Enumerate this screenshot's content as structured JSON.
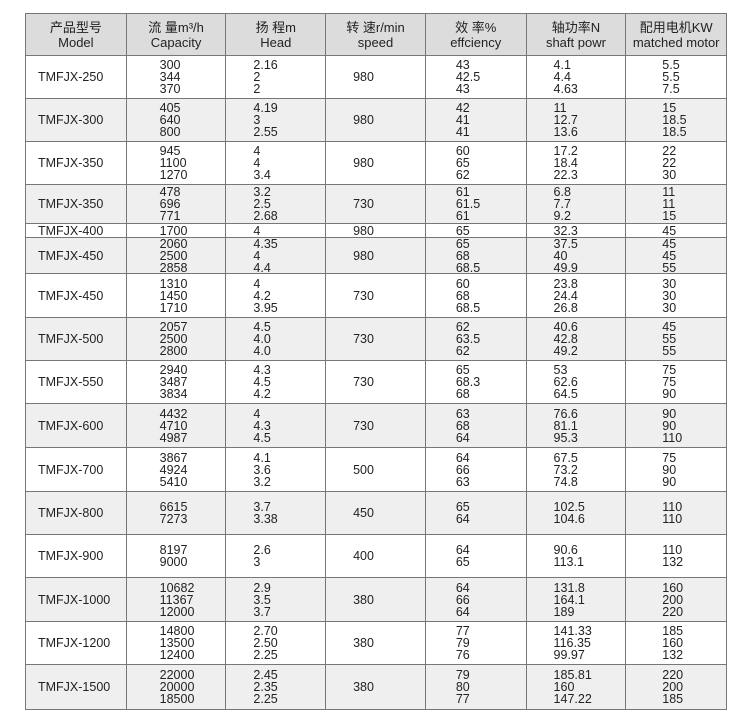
{
  "headers": [
    {
      "cn": "产品型号",
      "en": "Model"
    },
    {
      "cn": "流 量m³/h",
      "en": "Capacity"
    },
    {
      "cn": "扬 程m",
      "en": "Head"
    },
    {
      "cn": "转 速r/min",
      "en": "speed"
    },
    {
      "cn": "效 率%",
      "en": "effciency"
    },
    {
      "cn": "轴功率N",
      "en": "shaft powr"
    },
    {
      "cn": "配用电机KW",
      "en": "matched motor"
    }
  ],
  "rows": [
    {
      "model": "TMFJX-250",
      "capacity": [
        "300",
        "344",
        "370"
      ],
      "head": [
        "2.16",
        "2",
        "2"
      ],
      "speed": "980",
      "efficiency": [
        "43",
        "42.5",
        "43"
      ],
      "shaft_power": [
        "4.1",
        "4.4",
        "4.63"
      ],
      "motor": [
        "5.5",
        "5.5",
        "7.5"
      ]
    },
    {
      "model": "TMFJX-300",
      "capacity": [
        "405",
        "640",
        "800"
      ],
      "head": [
        "4.19",
        "3",
        "2.55"
      ],
      "speed": "980",
      "efficiency": [
        "42",
        "41",
        "41"
      ],
      "shaft_power": [
        "11",
        "12.7",
        "13.6"
      ],
      "motor": [
        "15",
        "18.5",
        "18.5"
      ]
    },
    {
      "model": "TMFJX-350",
      "capacity": [
        "945",
        "1100",
        "1270"
      ],
      "head": [
        "4",
        "4",
        "3.4"
      ],
      "speed": "980",
      "efficiency": [
        "60",
        "65",
        "62"
      ],
      "shaft_power": [
        "17.2",
        "18.4",
        "22.3"
      ],
      "motor": [
        "22",
        "22",
        "30"
      ]
    },
    {
      "model": "TMFJX-350",
      "capacity": [
        "478",
        "696",
        "771"
      ],
      "head": [
        "3.2",
        "2.5",
        "2.68"
      ],
      "speed": "730",
      "efficiency": [
        "61",
        "61.5",
        "61"
      ],
      "shaft_power": [
        "6.8",
        "7.7",
        "9.2"
      ],
      "motor": [
        "11",
        "11",
        "15"
      ]
    },
    {
      "model": "TMFJX-400",
      "capacity": [
        "1700"
      ],
      "head": [
        "4"
      ],
      "speed": "980",
      "efficiency": [
        "65"
      ],
      "shaft_power": [
        "32.3"
      ],
      "motor": [
        "45"
      ]
    },
    {
      "model": "TMFJX-450",
      "capacity": [
        "2060",
        "2500",
        "2858"
      ],
      "head": [
        "4.35",
        "4",
        "4.4"
      ],
      "speed": "980",
      "efficiency": [
        "65",
        "68",
        "68.5"
      ],
      "shaft_power": [
        "37.5",
        "40",
        "49.9"
      ],
      "motor": [
        "45",
        "45",
        "55"
      ]
    },
    {
      "model": "TMFJX-450",
      "capacity": [
        "1310",
        "1450",
        "1710"
      ],
      "head": [
        "4",
        "4.2",
        "3.95"
      ],
      "speed": "730",
      "efficiency": [
        "60",
        "68",
        "68.5"
      ],
      "shaft_power": [
        "23.8",
        "24.4",
        "26.8"
      ],
      "motor": [
        "30",
        "30",
        "30"
      ]
    },
    {
      "model": "TMFJX-500",
      "capacity": [
        "2057",
        "2500",
        "2800"
      ],
      "head": [
        "4.5",
        "4.0",
        "4.0"
      ],
      "speed": "730",
      "efficiency": [
        "62",
        "63.5",
        "62"
      ],
      "shaft_power": [
        "40.6",
        "42.8",
        "49.2"
      ],
      "motor": [
        "45",
        "55",
        "55"
      ]
    },
    {
      "model": "TMFJX-550",
      "capacity": [
        "2940",
        "3487",
        "3834"
      ],
      "head": [
        "4.3",
        "4.5",
        "4.2"
      ],
      "speed": "730",
      "efficiency": [
        "65",
        "68.3",
        "68"
      ],
      "shaft_power": [
        "53",
        "62.6",
        "64.5"
      ],
      "motor": [
        "75",
        "75",
        "90"
      ]
    },
    {
      "model": "TMFJX-600",
      "capacity": [
        "4432",
        "4710",
        "4987"
      ],
      "head": [
        "4",
        "4.3",
        "4.5"
      ],
      "speed": "730",
      "efficiency": [
        "63",
        "68",
        "64"
      ],
      "shaft_power": [
        "76.6",
        "81.1",
        "95.3"
      ],
      "motor": [
        "90",
        "90",
        "110"
      ]
    },
    {
      "model": "TMFJX-700",
      "capacity": [
        "3867",
        "4924",
        "5410"
      ],
      "head": [
        "4.1",
        "3.6",
        "3.2"
      ],
      "speed": "500",
      "efficiency": [
        "64",
        "66",
        "63"
      ],
      "shaft_power": [
        "67.5",
        "73.2",
        "74.8"
      ],
      "motor": [
        "75",
        "90",
        "90"
      ]
    },
    {
      "model": "TMFJX-800",
      "capacity": [
        "6615",
        "7273"
      ],
      "head": [
        "3.7",
        "3.38"
      ],
      "speed": "450",
      "efficiency": [
        "65",
        "64"
      ],
      "shaft_power": [
        "102.5",
        "104.6"
      ],
      "motor": [
        "110",
        "110"
      ]
    },
    {
      "model": "TMFJX-900",
      "capacity": [
        "8197",
        "9000"
      ],
      "head": [
        "2.6",
        "3"
      ],
      "speed": "400",
      "efficiency": [
        "64",
        "65"
      ],
      "shaft_power": [
        "90.6",
        "113.1"
      ],
      "motor": [
        "110",
        "132"
      ]
    },
    {
      "model": "TMFJX-1000",
      "capacity": [
        "10682",
        "11367",
        "12000"
      ],
      "head": [
        "2.9",
        "3.5",
        "3.7"
      ],
      "speed": "380",
      "efficiency": [
        "64",
        "66",
        "64"
      ],
      "shaft_power": [
        "131.8",
        "164.1",
        "189"
      ],
      "motor": [
        "160",
        "200",
        "220"
      ]
    },
    {
      "model": "TMFJX-1200",
      "capacity": [
        "14800",
        "13500",
        "12400"
      ],
      "head": [
        "2.70",
        "2.50",
        "2.25"
      ],
      "speed": "380",
      "efficiency": [
        "77",
        "79",
        "76"
      ],
      "shaft_power": [
        "141.33",
        "116.35",
        "99.97"
      ],
      "motor": [
        "185",
        "160",
        "132"
      ]
    },
    {
      "model": "TMFJX-1500",
      "capacity": [
        "22000",
        "20000",
        "18500"
      ],
      "head": [
        "2.45",
        "2.35",
        "2.25"
      ],
      "speed": "380",
      "efficiency": [
        "79",
        "80",
        "77"
      ],
      "shaft_power": [
        "185.81",
        "160",
        "147.22"
      ],
      "motor": [
        "220",
        "200",
        "185"
      ]
    }
  ]
}
